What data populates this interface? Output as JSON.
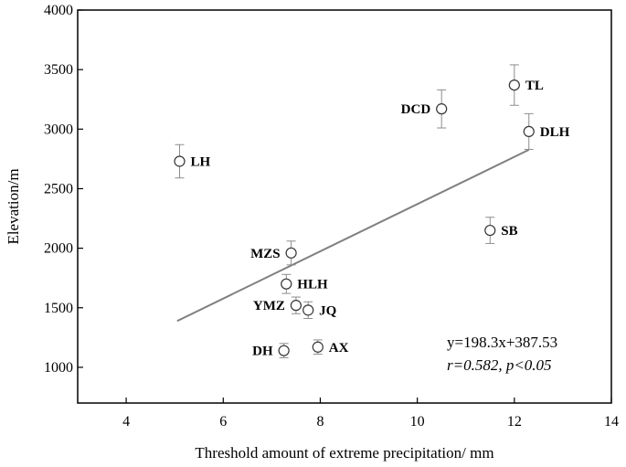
{
  "chart_data": {
    "type": "scatter",
    "xlabel": "Threshold amount of extreme precipitation/ mm",
    "ylabel": "Elevation/m",
    "xlim": [
      3,
      14
    ],
    "ylim": [
      700,
      4000
    ],
    "xticks": [
      4,
      6,
      8,
      10,
      12,
      14
    ],
    "yticks": [
      1000,
      1500,
      2000,
      2500,
      3000,
      3500,
      4000
    ],
    "grid": false,
    "points": [
      {
        "label": "LH",
        "x": 5.1,
        "y": 2730,
        "err": 140,
        "label_side": "right"
      },
      {
        "label": "MZS",
        "x": 7.4,
        "y": 1960,
        "err": 100,
        "label_side": "left"
      },
      {
        "label": "HLH",
        "x": 7.3,
        "y": 1700,
        "err": 80,
        "label_side": "right"
      },
      {
        "label": "YMZ",
        "x": 7.5,
        "y": 1520,
        "err": 70,
        "label_side": "left"
      },
      {
        "label": "JQ",
        "x": 7.75,
        "y": 1480,
        "err": 70,
        "label_side": "right"
      },
      {
        "label": "DH",
        "x": 7.25,
        "y": 1140,
        "err": 60,
        "label_side": "left"
      },
      {
        "label": "AX",
        "x": 7.95,
        "y": 1170,
        "err": 60,
        "label_side": "right"
      },
      {
        "label": "DCD",
        "x": 10.5,
        "y": 3170,
        "err": 160,
        "label_side": "left"
      },
      {
        "label": "TL",
        "x": 12.0,
        "y": 3370,
        "err": 170,
        "label_side": "right"
      },
      {
        "label": "DLH",
        "x": 12.3,
        "y": 2980,
        "err": 150,
        "label_side": "right"
      },
      {
        "label": "SB",
        "x": 11.5,
        "y": 2150,
        "err": 110,
        "label_side": "right"
      }
    ],
    "regression": {
      "slope": 198.3,
      "intercept": 387.53,
      "x_range": [
        5.05,
        12.3
      ],
      "equation": "y=198.3x+387.53",
      "stats": "r=0.582, p<0.05"
    }
  }
}
